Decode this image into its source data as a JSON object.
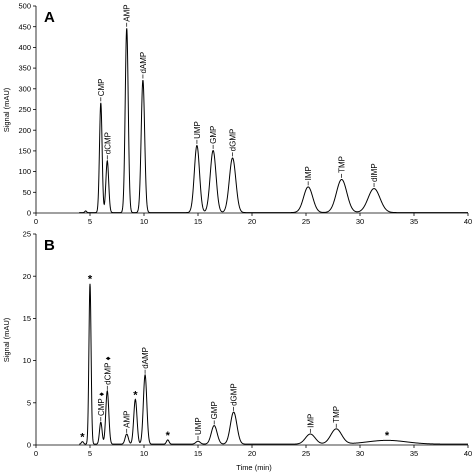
{
  "chart_data": [
    {
      "type": "line",
      "panel_label": "A",
      "ylabel": "Signal (mAU)",
      "xlabel": "",
      "xlim": [
        0,
        40
      ],
      "ylim": [
        0,
        500
      ],
      "xticks": [
        0,
        5,
        10,
        15,
        20,
        25,
        30,
        35,
        40
      ],
      "yticks": [
        0,
        50,
        100,
        150,
        200,
        250,
        300,
        350,
        400,
        450,
        500
      ],
      "baseline": 1,
      "peaks": [
        {
          "t": 4.6,
          "h": 4,
          "w": 0.08
        },
        {
          "t": 6.0,
          "h": 265,
          "w": 0.12
        },
        {
          "t": 6.6,
          "h": 125,
          "w": 0.13
        },
        {
          "t": 8.4,
          "h": 445,
          "w": 0.14
        },
        {
          "t": 9.9,
          "h": 320,
          "w": 0.16
        },
        {
          "t": 14.9,
          "h": 162,
          "w": 0.24
        },
        {
          "t": 16.4,
          "h": 150,
          "w": 0.27
        },
        {
          "t": 18.2,
          "h": 132,
          "w": 0.3
        },
        {
          "t": 25.2,
          "h": 62,
          "w": 0.42
        },
        {
          "t": 28.3,
          "h": 80,
          "w": 0.48
        },
        {
          "t": 31.3,
          "h": 58,
          "w": 0.55
        }
      ],
      "labels": [
        {
          "text": "CMP",
          "t": 6.0,
          "h": 265
        },
        {
          "text": "dCMP",
          "t": 6.6,
          "h": 125
        },
        {
          "text": "AMP",
          "t": 8.4,
          "h": 445
        },
        {
          "text": "dAMP",
          "t": 9.9,
          "h": 320
        },
        {
          "text": "UMP",
          "t": 14.9,
          "h": 162
        },
        {
          "text": "GMP",
          "t": 16.4,
          "h": 150
        },
        {
          "text": "dGMP",
          "t": 18.2,
          "h": 132
        },
        {
          "text": "IMP",
          "t": 25.2,
          "h": 62
        },
        {
          "text": "TMP",
          "t": 28.3,
          "h": 80
        },
        {
          "text": "dIMP",
          "t": 31.3,
          "h": 58
        }
      ]
    },
    {
      "type": "line",
      "panel_label": "B",
      "ylabel": "Signal (mAU)",
      "xlabel": "Time (min)",
      "xlim": [
        0,
        40
      ],
      "ylim": [
        0,
        25
      ],
      "xticks": [
        0,
        5,
        10,
        15,
        20,
        25,
        30,
        35,
        40
      ],
      "yticks": [
        0,
        5,
        10,
        15,
        20,
        25
      ],
      "baseline": 0.1,
      "peaks": [
        {
          "t": 4.3,
          "h": 0.3,
          "w": 0.1
        },
        {
          "t": 5.0,
          "h": 19.0,
          "w": 0.1
        },
        {
          "t": 6.0,
          "h": 2.6,
          "w": 0.12
        },
        {
          "t": 6.6,
          "h": 6.3,
          "w": 0.14
        },
        {
          "t": 8.4,
          "h": 1.2,
          "w": 0.15
        },
        {
          "t": 9.2,
          "h": 5.3,
          "w": 0.15
        },
        {
          "t": 10.1,
          "h": 8.2,
          "w": 0.16
        },
        {
          "t": 12.2,
          "h": 0.5,
          "w": 0.12
        },
        {
          "t": 15.0,
          "h": 0.35,
          "w": 0.2
        },
        {
          "t": 16.5,
          "h": 2.2,
          "w": 0.27
        },
        {
          "t": 18.3,
          "h": 3.8,
          "w": 0.3
        },
        {
          "t": 25.4,
          "h": 1.2,
          "w": 0.45
        },
        {
          "t": 27.8,
          "h": 1.8,
          "w": 0.5
        },
        {
          "t": 32.5,
          "h": 0.45,
          "w": 1.8
        }
      ],
      "labels": [
        {
          "text": "*",
          "t": 4.3,
          "h": 0.3
        },
        {
          "text": "*",
          "t": 5.0,
          "h": 19.0
        },
        {
          "text": "CMP ♦",
          "t": 6.0,
          "h": 2.6
        },
        {
          "text": "dCMP ♦",
          "t": 6.6,
          "h": 6.3
        },
        {
          "text": "AMP",
          "t": 8.4,
          "h": 1.2
        },
        {
          "text": "*",
          "t": 9.2,
          "h": 5.3
        },
        {
          "text": "dAMP",
          "t": 10.1,
          "h": 8.2
        },
        {
          "text": "*",
          "t": 12.2,
          "h": 0.5
        },
        {
          "text": "UMP",
          "t": 15.0,
          "h": 0.35
        },
        {
          "text": "GMP",
          "t": 16.5,
          "h": 2.2
        },
        {
          "text": "dGMP",
          "t": 18.3,
          "h": 3.8
        },
        {
          "text": "IMP",
          "t": 25.4,
          "h": 1.2
        },
        {
          "text": "TMP",
          "t": 27.8,
          "h": 1.8
        },
        {
          "text": "*",
          "t": 32.5,
          "h": 0.45
        }
      ]
    }
  ]
}
